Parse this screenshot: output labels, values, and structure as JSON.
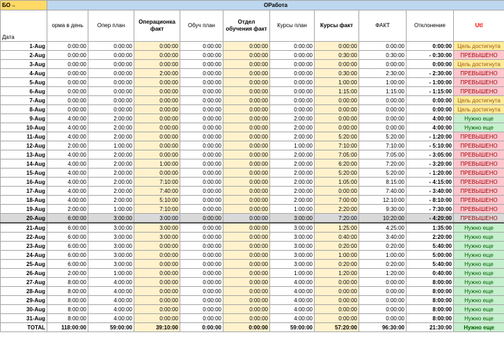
{
  "corner_label": "БО→",
  "band_label": "ОРабота",
  "headers": [
    "Дата",
    "орма в день",
    "Опер план",
    "Операционка факт",
    "Обуч план",
    "Отдел обучения факт",
    "Курсы план",
    "Курсы факт",
    "ФАКТ",
    "Отклонение",
    "Utl"
  ],
  "rows": [
    [
      "1-Aug",
      "0:00:00",
      "0:00:00",
      "0:00:00",
      "0:00:00",
      "0:00:00",
      "0:00:00",
      "0:00:00",
      "0:00:00",
      "0:00:00",
      "Цель достигнута"
    ],
    [
      "2-Aug",
      "0:00:00",
      "0:00:00",
      "0:00:00",
      "0:00:00",
      "0:00:00",
      "0:00:00",
      "0:30:00",
      "0:30:00",
      "- 0:30:00",
      "ПРЕВЫШЕНО"
    ],
    [
      "3-Aug",
      "0:00:00",
      "0:00:00",
      "0:00:00",
      "0:00:00",
      "0:00:00",
      "0:00:00",
      "0:00:00",
      "0:00:00",
      "0:00:00",
      "Цель достигнута"
    ],
    [
      "4-Aug",
      "0:00:00",
      "0:00:00",
      "2:00:00",
      "0:00:00",
      "0:00:00",
      "0:00:00",
      "0:30:00",
      "2:30:00",
      "- 2:30:00",
      "ПРЕВЫШЕНО"
    ],
    [
      "5-Aug",
      "0:00:00",
      "0:00:00",
      "0:00:00",
      "0:00:00",
      "0:00:00",
      "0:00:00",
      "1:00:00",
      "1:00:00",
      "- 1:00:00",
      "ПРЕВЫШЕНО"
    ],
    [
      "6-Aug",
      "0:00:00",
      "0:00:00",
      "0:00:00",
      "0:00:00",
      "0:00:00",
      "0:00:00",
      "1:15:00",
      "1:15:00",
      "- 1:15:00",
      "ПРЕВЫШЕНО"
    ],
    [
      "7-Aug",
      "0:00:00",
      "0:00:00",
      "0:00:00",
      "0:00:00",
      "0:00:00",
      "0:00:00",
      "0:00:00",
      "0:00:00",
      "0:00:00",
      "Цель достигнута"
    ],
    [
      "8-Aug",
      "0:00:00",
      "0:00:00",
      "0:00:00",
      "0:00:00",
      "0:00:00",
      "0:00:00",
      "0:00:00",
      "0:00:00",
      "0:00:00",
      "Цель достигнута"
    ],
    [
      "9-Aug",
      "4:00:00",
      "2:00:00",
      "0:00:00",
      "0:00:00",
      "0:00:00",
      "2:00:00",
      "0:00:00",
      "0:00:00",
      "4:00:00",
      "Нужно еще"
    ],
    [
      "10-Aug",
      "4:00:00",
      "2:00:00",
      "0:00:00",
      "0:00:00",
      "0:00:00",
      "2:00:00",
      "0:00:00",
      "0:00:00",
      "4:00:00",
      "Нужно еще"
    ],
    [
      "11-Aug",
      "4:00:00",
      "2:00:00",
      "0:00:00",
      "0:00:00",
      "0:00:00",
      "2:00:00",
      "5:20:00",
      "5:20:00",
      "- 1:20:00",
      "ПРЕВЫШЕНО"
    ],
    [
      "12-Aug",
      "2:00:00",
      "1:00:00",
      "0:00:00",
      "0:00:00",
      "0:00:00",
      "1:00:00",
      "7:10:00",
      "7:10:00",
      "- 5:10:00",
      "ПРЕВЫШЕНО"
    ],
    [
      "13-Aug",
      "4:00:00",
      "2:00:00",
      "0:00:00",
      "0:00:00",
      "0:00:00",
      "2:00:00",
      "7:05:00",
      "7:05:00",
      "- 3:05:00",
      "ПРЕВЫШЕНО"
    ],
    [
      "14-Aug",
      "4:00:00",
      "2:00:00",
      "1:00:00",
      "0:00:00",
      "0:00:00",
      "2:00:00",
      "6:20:00",
      "7:20:00",
      "- 3:20:00",
      "ПРЕВЫШЕНО"
    ],
    [
      "15-Aug",
      "4:00:00",
      "2:00:00",
      "0:00:00",
      "0:00:00",
      "0:00:00",
      "2:00:00",
      "5:20:00",
      "5:20:00",
      "- 1:20:00",
      "ПРЕВЫШЕНО"
    ],
    [
      "16-Aug",
      "4:00:00",
      "2:00:00",
      "7:10:00",
      "0:00:00",
      "0:00:00",
      "2:00:00",
      "1:05:00",
      "8:15:00",
      "- 4:15:00",
      "ПРЕВЫШЕНО"
    ],
    [
      "17-Aug",
      "4:00:00",
      "2:00:00",
      "7:40:00",
      "0:00:00",
      "0:00:00",
      "2:00:00",
      "0:00:00",
      "7:40:00",
      "- 3:40:00",
      "ПРЕВЫШЕНО"
    ],
    [
      "18-Aug",
      "4:00:00",
      "2:00:00",
      "5:10:00",
      "0:00:00",
      "0:00:00",
      "2:00:00",
      "7:00:00",
      "12:10:00",
      "- 8:10:00",
      "ПРЕВЫШЕНО"
    ],
    [
      "19-Aug",
      "2:00:00",
      "1:00:00",
      "7:10:00",
      "0:00:00",
      "0:00:00",
      "1:00:00",
      "2:20:00",
      "9:30:00",
      "- 7:30:00",
      "ПРЕВЫШЕНО"
    ],
    [
      "20-Aug",
      "6:00:00",
      "3:00:00",
      "3:00:00",
      "0:00:00",
      "0:00:00",
      "3:00:00",
      "7:20:00",
      "10:20:00",
      "- 4:20:00",
      "ПРЕВЫШЕНО"
    ],
    [
      "21-Aug",
      "6:00:00",
      "3:00:00",
      "3:00:00",
      "0:00:00",
      "0:00:00",
      "3:00:00",
      "1:25:00",
      "4:25:00",
      "1:35:00",
      "Нужно еще"
    ],
    [
      "22-Aug",
      "6:00:00",
      "3:00:00",
      "3:00:00",
      "0:00:00",
      "0:00:00",
      "3:00:00",
      "0:40:00",
      "3:40:00",
      "2:20:00",
      "Нужно еще"
    ],
    [
      "23-Aug",
      "6:00:00",
      "3:00:00",
      "0:00:00",
      "0:00:00",
      "0:00:00",
      "3:00:00",
      "0:20:00",
      "0:20:00",
      "5:40:00",
      "Нужно еще"
    ],
    [
      "24-Aug",
      "6:00:00",
      "3:00:00",
      "0:00:00",
      "0:00:00",
      "0:00:00",
      "3:00:00",
      "1:00:00",
      "1:00:00",
      "5:00:00",
      "Нужно еще"
    ],
    [
      "25-Aug",
      "6:00:00",
      "3:00:00",
      "0:00:00",
      "0:00:00",
      "0:00:00",
      "3:00:00",
      "0:20:00",
      "0:20:00",
      "5:40:00",
      "Нужно еще"
    ],
    [
      "26-Aug",
      "2:00:00",
      "1:00:00",
      "0:00:00",
      "0:00:00",
      "0:00:00",
      "1:00:00",
      "1:20:00",
      "1:20:00",
      "0:40:00",
      "Нужно еще"
    ],
    [
      "27-Aug",
      "8:00:00",
      "4:00:00",
      "0:00:00",
      "0:00:00",
      "0:00:00",
      "4:00:00",
      "0:00:00",
      "0:00:00",
      "8:00:00",
      "Нужно еще"
    ],
    [
      "28-Aug",
      "8:00:00",
      "4:00:00",
      "0:00:00",
      "0:00:00",
      "0:00:00",
      "4:00:00",
      "0:00:00",
      "0:00:00",
      "8:00:00",
      "Нужно еще"
    ],
    [
      "29-Aug",
      "8:00:00",
      "4:00:00",
      "0:00:00",
      "0:00:00",
      "0:00:00",
      "4:00:00",
      "0:00:00",
      "0:00:00",
      "8:00:00",
      "Нужно еще"
    ],
    [
      "30-Aug",
      "8:00:00",
      "4:00:00",
      "0:00:00",
      "0:00:00",
      "0:00:00",
      "4:00:00",
      "0:00:00",
      "0:00:00",
      "8:00:00",
      "Нужно еще"
    ],
    [
      "31-Aug",
      "8:00:00",
      "4:00:00",
      "0:00:00",
      "0:00:00",
      "0:00:00",
      "4:00:00",
      "0:00:00",
      "0:00:00",
      "8:00:00",
      "Нужно еще"
    ]
  ],
  "totals": [
    "TOTAL",
    "118:00:00",
    "59:00:00",
    "39:10:00",
    "0:00:00",
    "0:00:00",
    "59:00:00",
    "57:20:00",
    "96:30:00",
    "21:30:00",
    "Нужно еще"
  ],
  "status_colors": {
    "ПРЕВЫШЕНО": "st-red",
    "Нужно еще": "st-green",
    "Цель достигнута": "st-gold"
  },
  "highlight_row": "20-Aug"
}
